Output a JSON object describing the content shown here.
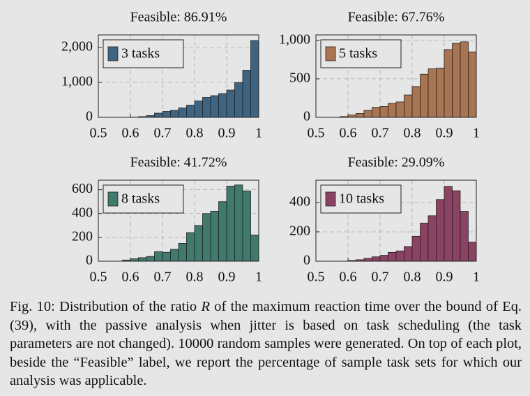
{
  "chart_data": [
    {
      "type": "histogram",
      "title": "Feasible: 86.91%",
      "bins": [
        0.5,
        0.525,
        0.55,
        0.575,
        0.6,
        0.625,
        0.65,
        0.675,
        0.7,
        0.725,
        0.75,
        0.775,
        0.8,
        0.825,
        0.85,
        0.875,
        0.9,
        0.925,
        0.95,
        0.975,
        1
      ],
      "series": [
        {
          "name": "3 tasks",
          "color": "#3e6482",
          "values": [
            0,
            0,
            0,
            0,
            5,
            20,
            50,
            120,
            170,
            200,
            270,
            350,
            470,
            570,
            620,
            680,
            780,
            1000,
            1350,
            2200
          ]
        }
      ],
      "xlim": [
        0.5,
        1
      ],
      "xticks": [
        0.5,
        0.6,
        0.7,
        0.8,
        0.9,
        1
      ],
      "ylim": [
        0,
        2360
      ],
      "yticks": [
        0,
        {
          "value": 1000,
          "label": "1,000"
        },
        {
          "value": 2000,
          "label": "2,000"
        }
      ],
      "grid": true
    },
    {
      "type": "histogram",
      "title": "Feasible: 67.76%",
      "bins": [
        0.5,
        0.525,
        0.55,
        0.575,
        0.6,
        0.625,
        0.65,
        0.675,
        0.7,
        0.725,
        0.75,
        0.775,
        0.8,
        0.825,
        0.85,
        0.875,
        0.9,
        0.925,
        0.95,
        0.975,
        1
      ],
      "series": [
        {
          "name": "5 tasks",
          "color": "#a87452",
          "values": [
            0,
            0,
            0,
            10,
            30,
            50,
            90,
            130,
            140,
            180,
            200,
            290,
            400,
            560,
            630,
            640,
            880,
            960,
            980,
            850
          ]
        }
      ],
      "xlim": [
        0.5,
        1
      ],
      "xticks": [
        0.5,
        0.6,
        0.7,
        0.8,
        0.9,
        1
      ],
      "ylim": [
        0,
        1070
      ],
      "yticks": [
        0,
        500,
        {
          "value": 1000,
          "label": "1,000"
        }
      ],
      "grid": true
    },
    {
      "type": "histogram",
      "title": "Feasible: 41.72%",
      "bins": [
        0.5,
        0.525,
        0.55,
        0.575,
        0.6,
        0.625,
        0.65,
        0.675,
        0.7,
        0.725,
        0.75,
        0.775,
        0.8,
        0.825,
        0.85,
        0.875,
        0.9,
        0.925,
        0.95,
        0.975,
        1
      ],
      "series": [
        {
          "name": "8 tasks",
          "color": "#3f7a6d",
          "values": [
            0,
            0,
            0,
            10,
            20,
            30,
            40,
            80,
            75,
            100,
            150,
            240,
            300,
            400,
            420,
            500,
            630,
            640,
            590,
            220
          ]
        }
      ],
      "xlim": [
        0.5,
        1
      ],
      "xticks": [
        0.5,
        0.6,
        0.7,
        0.8,
        0.9,
        1
      ],
      "ylim": [
        0,
        680
      ],
      "yticks": [
        0,
        200,
        400,
        600
      ],
      "grid": true
    },
    {
      "type": "histogram",
      "title": "Feasible: 29.09%",
      "bins": [
        0.5,
        0.525,
        0.55,
        0.575,
        0.6,
        0.625,
        0.65,
        0.675,
        0.7,
        0.725,
        0.75,
        0.775,
        0.8,
        0.825,
        0.85,
        0.875,
        0.9,
        0.925,
        0.95,
        0.975,
        1
      ],
      "series": [
        {
          "name": "10 tasks",
          "color": "#8c4363",
          "values": [
            0,
            0,
            0,
            0,
            5,
            10,
            20,
            30,
            40,
            60,
            70,
            100,
            170,
            260,
            310,
            420,
            510,
            480,
            340,
            130
          ]
        }
      ],
      "xlim": [
        0.5,
        1
      ],
      "xticks": [
        0.5,
        0.6,
        0.7,
        0.8,
        0.9,
        1
      ],
      "ylim": [
        0,
        552
      ],
      "yticks": [
        0,
        200,
        400
      ],
      "grid": true
    }
  ],
  "caption": [
    "Fig. 10: Distribution of the ratio ",
    "R",
    " of the maximum reaction time over the bound of Eq. (39), with the passive analysis when jitter is based on task scheduling (the task parameters are not changed). 10000 random samples were generated. On top of each plot, beside the “Feasible” label, we report the percentage of sample task sets for which our analysis was applicable."
  ]
}
